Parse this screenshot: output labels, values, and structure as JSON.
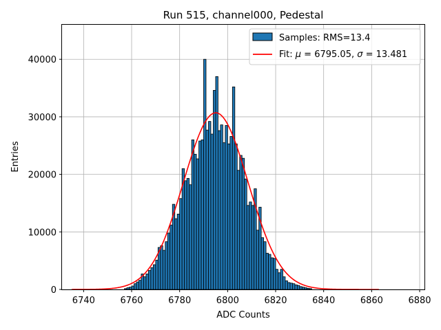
{
  "chart_data": {
    "type": "bar",
    "title": "Run 515, channel000, Pedestal",
    "xlabel": "ADC Counts",
    "ylabel": "Entries",
    "xlim": [
      6731,
      6882
    ],
    "ylim": [
      0,
      46000
    ],
    "xticks": [
      6740,
      6760,
      6780,
      6800,
      6820,
      6840,
      6860,
      6880
    ],
    "yticks": [
      0,
      10000,
      20000,
      30000,
      40000
    ],
    "grid": true,
    "legend_position": "top-right",
    "colors": {
      "bars": "#1f77b4",
      "bar_edge": "#000000",
      "fit": "#ff0000",
      "grid": "#b0b0b0"
    },
    "histogram": {
      "name": "Samples: RMS=13.4",
      "bin_width": 1,
      "bins": [
        [
          6757,
          150
        ],
        [
          6758,
          300
        ],
        [
          6759,
          400
        ],
        [
          6760,
          600
        ],
        [
          6761,
          1000
        ],
        [
          6762,
          1300
        ],
        [
          6763,
          1600
        ],
        [
          6764,
          2700
        ],
        [
          6765,
          2200
        ],
        [
          6766,
          2700
        ],
        [
          6767,
          3300
        ],
        [
          6768,
          3800
        ],
        [
          6769,
          4300
        ],
        [
          6770,
          5100
        ],
        [
          6771,
          7300
        ],
        [
          6772,
          7600
        ],
        [
          6773,
          6800
        ],
        [
          6774,
          8300
        ],
        [
          6775,
          9800
        ],
        [
          6776,
          11200
        ],
        [
          6777,
          14800
        ],
        [
          6778,
          12300
        ],
        [
          6779,
          13100
        ],
        [
          6780,
          15800
        ],
        [
          6781,
          21000
        ],
        [
          6782,
          18900
        ],
        [
          6783,
          19300
        ],
        [
          6784,
          18200
        ],
        [
          6785,
          26000
        ],
        [
          6786,
          23500
        ],
        [
          6787,
          22700
        ],
        [
          6788,
          25800
        ],
        [
          6789,
          26000
        ],
        [
          6790,
          40000
        ],
        [
          6791,
          27700
        ],
        [
          6792,
          29200
        ],
        [
          6793,
          27000
        ],
        [
          6794,
          34600
        ],
        [
          6795,
          37000
        ],
        [
          6796,
          27600
        ],
        [
          6797,
          28600
        ],
        [
          6798,
          25500
        ],
        [
          6799,
          28500
        ],
        [
          6800,
          25300
        ],
        [
          6801,
          26600
        ],
        [
          6802,
          35200
        ],
        [
          6803,
          25300
        ],
        [
          6804,
          20700
        ],
        [
          6805,
          23300
        ],
        [
          6806,
          22800
        ],
        [
          6807,
          19200
        ],
        [
          6808,
          14600
        ],
        [
          6809,
          15200
        ],
        [
          6810,
          14600
        ],
        [
          6811,
          17500
        ],
        [
          6812,
          10300
        ],
        [
          6813,
          14300
        ],
        [
          6814,
          9000
        ],
        [
          6815,
          8300
        ],
        [
          6816,
          6300
        ],
        [
          6817,
          6100
        ],
        [
          6818,
          5500
        ],
        [
          6819,
          5400
        ],
        [
          6820,
          3500
        ],
        [
          6821,
          2900
        ],
        [
          6822,
          3500
        ],
        [
          6823,
          2200
        ],
        [
          6824,
          1500
        ],
        [
          6825,
          1200
        ],
        [
          6826,
          1100
        ],
        [
          6827,
          1000
        ],
        [
          6828,
          800
        ],
        [
          6829,
          700
        ],
        [
          6830,
          500
        ],
        [
          6831,
          400
        ],
        [
          6832,
          300
        ],
        [
          6833,
          200
        ],
        [
          6834,
          150
        ]
      ]
    },
    "fit": {
      "name": "Fit: μ = 6795.05, σ = 13.481",
      "label_prefix": "Fit: ",
      "mu_symbol": "μ",
      "mu_text": " = 6795.05, ",
      "sigma_symbol": "σ",
      "sigma_text": " = 13.481",
      "mu": 6795.05,
      "sigma": 13.481,
      "amplitude": 30700,
      "x_range": [
        6735,
        6863
      ]
    }
  }
}
